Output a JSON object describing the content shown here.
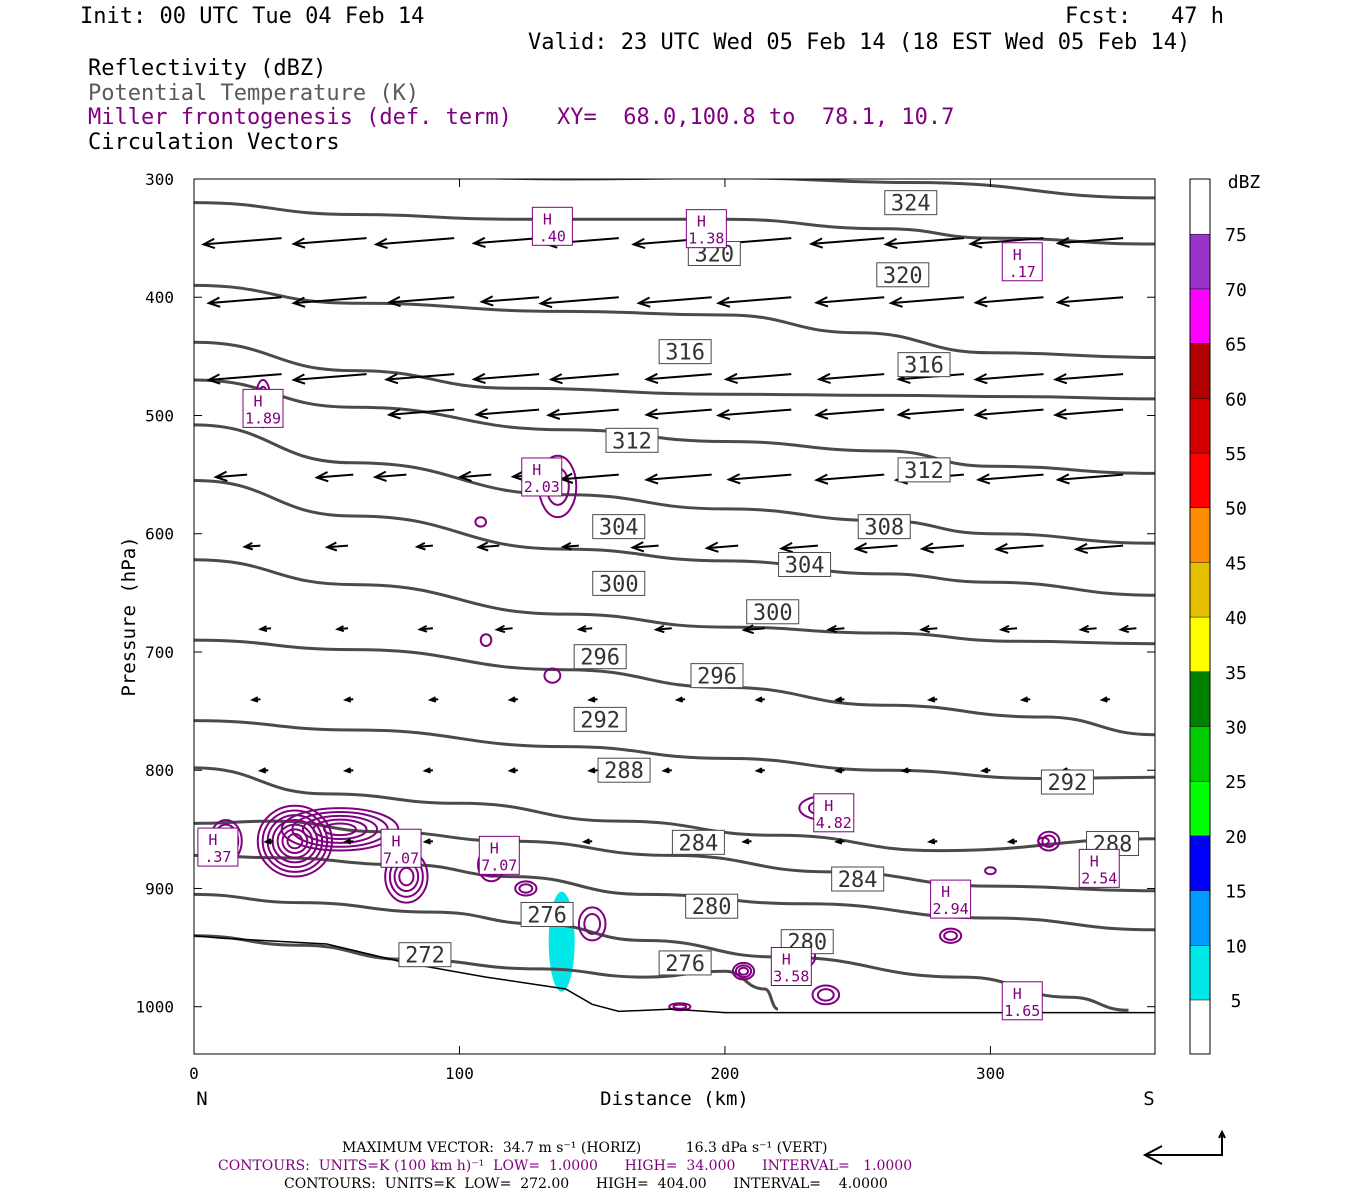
{
  "header": {
    "init": "Init: 00 UTC Tue 04 Feb 14",
    "fcst": "Fcst:   47 h",
    "valid": "Valid: 23 UTC Wed 05 Feb 14 (18 EST Wed 05 Feb 14)",
    "field1": "Reflectivity (dBZ)",
    "field2": "Potential Temperature (K)",
    "field3": "Miller frontogenesis (def. term)",
    "xy": "XY=  68.0,100.8 to  78.1, 10.7",
    "field4": "Circulation Vectors"
  },
  "footer": {
    "max_vector": "MAXIMUM VECTOR:  34.7 m s⁻¹ (HORIZ)          16.3 dPa s⁻¹ (VERT)",
    "contours1": "CONTOURS:  UNITS=K (100 km h)⁻¹  LOW=  1.0000      HIGH=  34.000      INTERVAL=   1.0000",
    "contours2": "CONTOURS:  UNITS=K  LOW=  272.00      HIGH=  404.00      INTERVAL=    4.0000"
  },
  "colors": {
    "theta": "#4a4a4a",
    "fronto": "#800080",
    "reflectivity_5": "#00e8e8"
  },
  "chart_data": {
    "type": "cross-section",
    "xlabel": "Distance (km)",
    "ylabel": "Pressure (hPa)",
    "xlim": [
      0,
      362
    ],
    "ylim": [
      1040,
      300
    ],
    "x_ticks": [
      0,
      100,
      200,
      300
    ],
    "y_ticks": [
      300,
      400,
      500,
      600,
      700,
      800,
      900,
      1000
    ],
    "left_end_label": "N",
    "right_end_label": "S",
    "colorbar": {
      "title": "dBZ",
      "levels": [
        5,
        10,
        15,
        20,
        25,
        30,
        35,
        40,
        45,
        50,
        55,
        60,
        65,
        70,
        75
      ],
      "colors": [
        "#00e8e8",
        "#0099ff",
        "#0000ff",
        "#00ff00",
        "#00cc00",
        "#008000",
        "#ffff00",
        "#e6c000",
        "#ff8c00",
        "#ff0000",
        "#d40000",
        "#b00000",
        "#ff00ff",
        "#9933cc",
        "#ffffff"
      ]
    },
    "theta_labels": [
      {
        "text": "324",
        "x": 270,
        "p": 320
      },
      {
        "text": "320",
        "x": 196,
        "p": 363
      },
      {
        "text": "320",
        "x": 267,
        "p": 381
      },
      {
        "text": "316",
        "x": 185,
        "p": 446
      },
      {
        "text": "316",
        "x": 275,
        "p": 457
      },
      {
        "text": "312",
        "x": 165,
        "p": 521
      },
      {
        "text": "312",
        "x": 275,
        "p": 546
      },
      {
        "text": "308",
        "x": 260,
        "p": 594
      },
      {
        "text": "304",
        "x": 160,
        "p": 594
      },
      {
        "text": "304",
        "x": 230,
        "p": 626
      },
      {
        "text": "300",
        "x": 160,
        "p": 642
      },
      {
        "text": "300",
        "x": 218,
        "p": 666
      },
      {
        "text": "296",
        "x": 153,
        "p": 704
      },
      {
        "text": "296",
        "x": 197,
        "p": 720
      },
      {
        "text": "292",
        "x": 153,
        "p": 757
      },
      {
        "text": "292",
        "x": 329,
        "p": 810
      },
      {
        "text": "288",
        "x": 162,
        "p": 800
      },
      {
        "text": "288",
        "x": 346,
        "p": 862
      },
      {
        "text": "284",
        "x": 190,
        "p": 861
      },
      {
        "text": "284",
        "x": 250,
        "p": 892
      },
      {
        "text": "280",
        "x": 195,
        "p": 915
      },
      {
        "text": "280",
        "x": 231,
        "p": 945
      },
      {
        "text": "276",
        "x": 133,
        "p": 922
      },
      {
        "text": "276",
        "x": 185,
        "p": 963
      },
      {
        "text": "272",
        "x": 87,
        "p": 956
      }
    ],
    "fronto_maxima": [
      {
        "label": "H",
        "value": ".40",
        "x": 135,
        "p": 340
      },
      {
        "label": "H",
        "value": "1.38",
        "x": 193,
        "p": 342
      },
      {
        "label": "H",
        "value": ".17",
        "x": 312,
        "p": 370
      },
      {
        "label": "H",
        "value": "1.89",
        "x": 26,
        "p": 494
      },
      {
        "label": "H",
        "value": "2.03",
        "x": 131,
        "p": 552
      },
      {
        "label": "H",
        "value": ".37",
        "x": 9,
        "p": 865
      },
      {
        "label": "H",
        "value": "7.07",
        "x": 78,
        "p": 866
      },
      {
        "label": "H",
        "value": "7.07",
        "x": 115,
        "p": 872
      },
      {
        "label": "H",
        "value": "4.82",
        "x": 241,
        "p": 836
      },
      {
        "label": "H",
        "value": "2.54",
        "x": 341,
        "p": 883
      },
      {
        "label": "H",
        "value": "2.94",
        "x": 285,
        "p": 909
      },
      {
        "label": "H",
        "value": "3.58",
        "x": 225,
        "p": 966
      },
      {
        "label": "H",
        "value": "1.65",
        "x": 312,
        "p": 995
      }
    ],
    "reference_vector": "34.7 m s-1 (HORIZ), 16.3 dPa s-1 (VERT)"
  }
}
